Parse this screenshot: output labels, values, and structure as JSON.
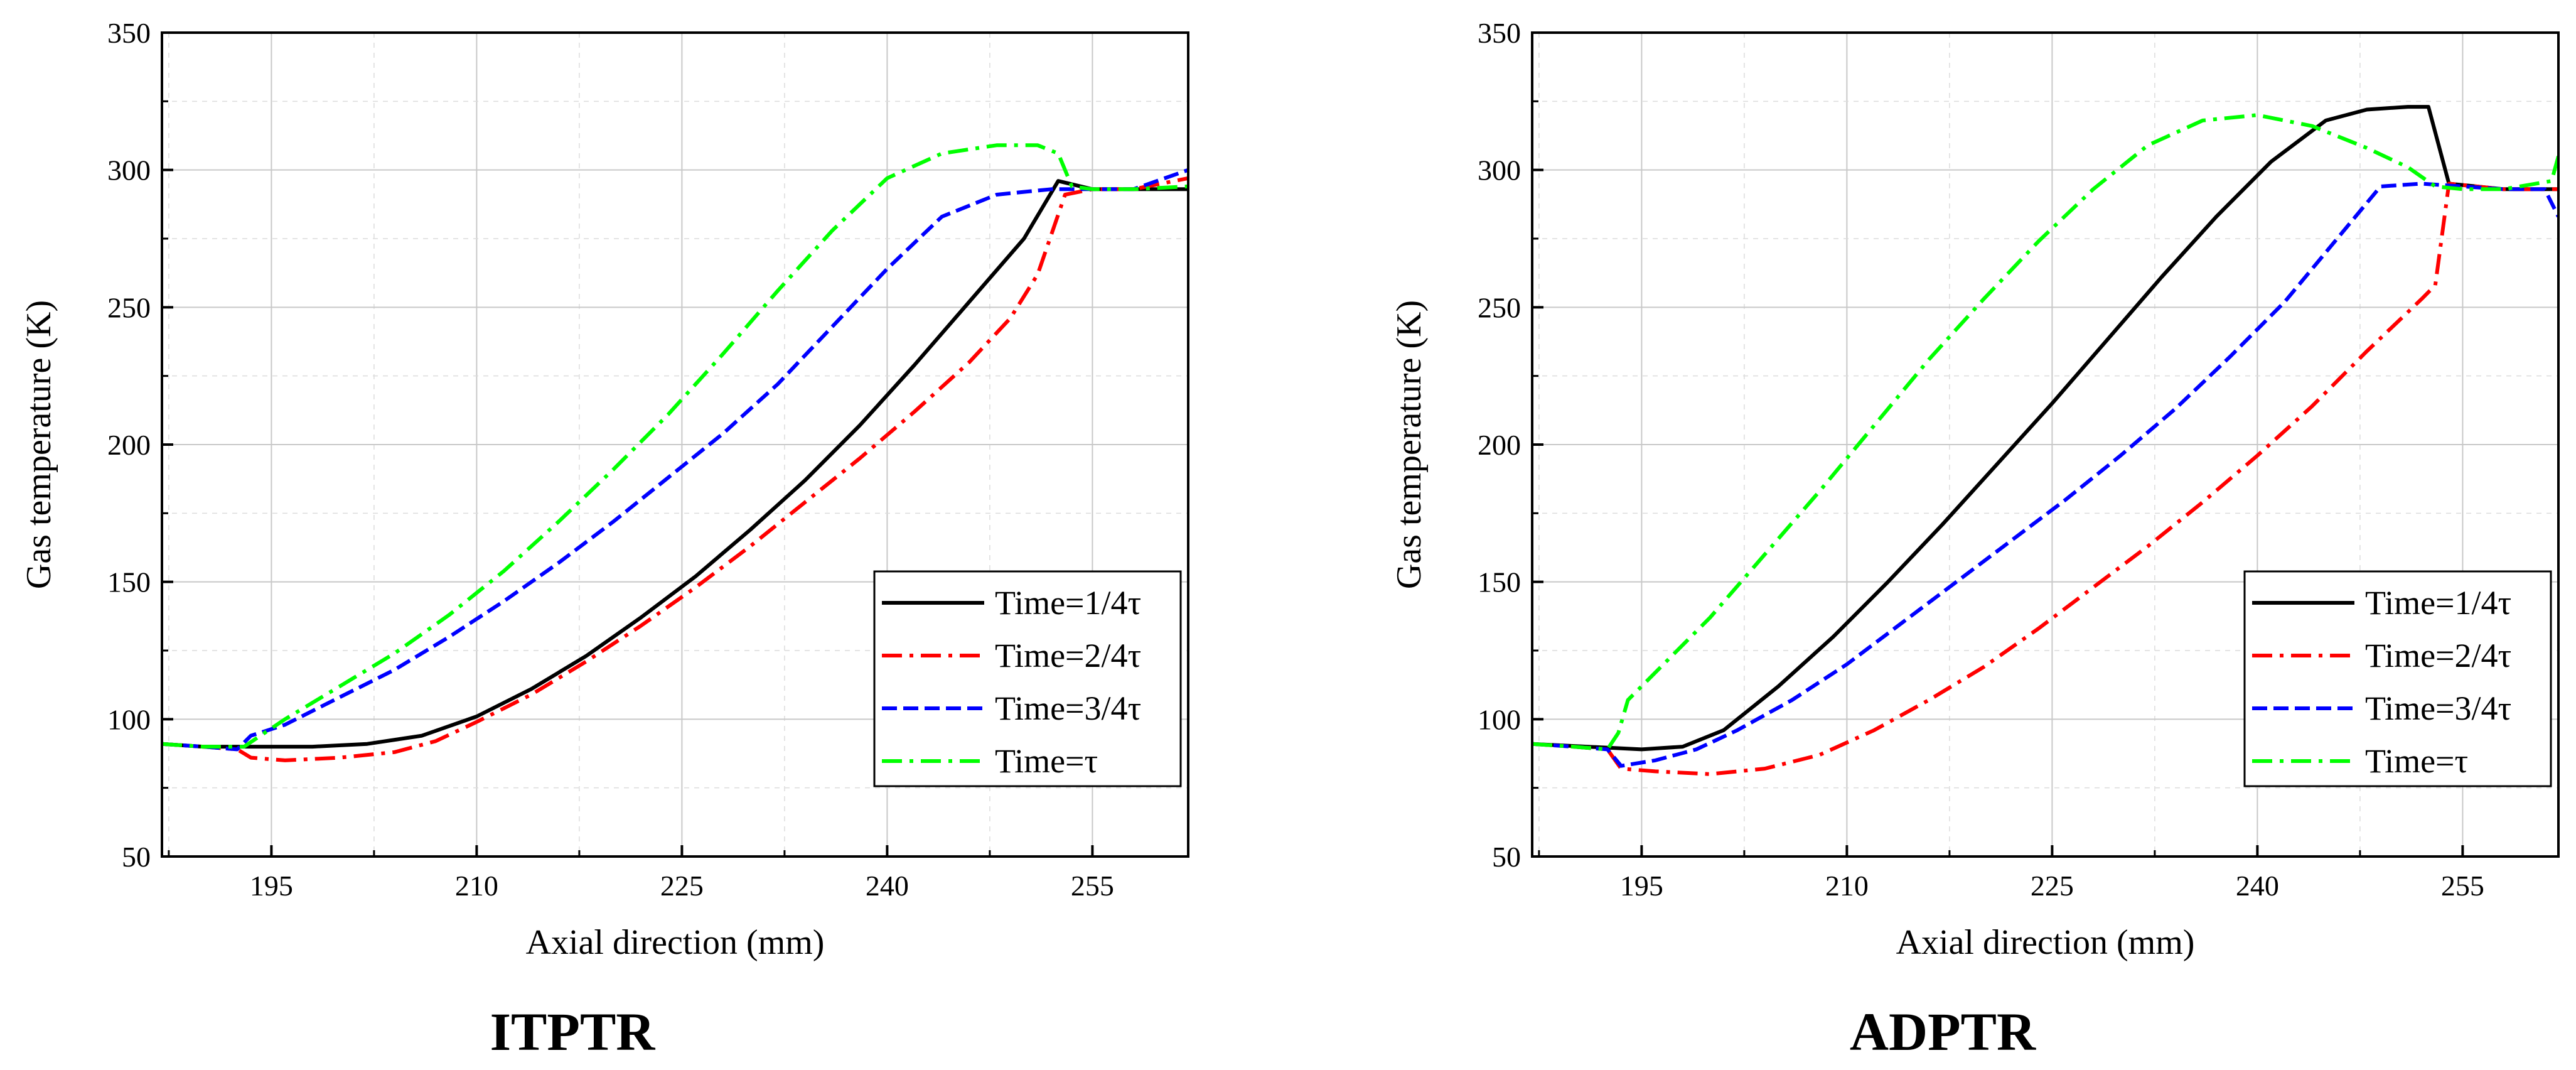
{
  "chart_data": [
    {
      "type": "line",
      "caption": "ITPTR",
      "xlabel": "Axial direction (mm)",
      "ylabel": "Gas temperature (K)",
      "xlim": [
        187,
        262
      ],
      "ylim": [
        50,
        350
      ],
      "xticks": [
        195,
        210,
        225,
        240,
        255
      ],
      "yticks": [
        50,
        100,
        150,
        200,
        250,
        300,
        350
      ],
      "grid": true,
      "legend_position": "bottom-right",
      "series": [
        {
          "name": "Time=1/4τ",
          "color": "#000000",
          "style": "solid",
          "x": [
            187,
            190,
            194,
            198,
            202,
            206,
            210,
            214,
            218,
            222,
            226,
            230,
            234,
            238,
            242,
            246,
            250,
            252.5,
            255,
            258,
            262
          ],
          "y": [
            91,
            90,
            90,
            90,
            91,
            94,
            101,
            111,
            123,
            137,
            152,
            169,
            187,
            207,
            229,
            252,
            275,
            296,
            293,
            293,
            293
          ]
        },
        {
          "name": "Time=2/4τ",
          "color": "#ff0000",
          "style": "dashdot",
          "x": [
            187,
            190,
            192.5,
            193.5,
            196,
            200,
            204,
            207,
            210,
            214,
            218,
            222,
            226,
            230,
            234,
            238,
            242,
            246,
            249,
            251,
            253,
            255,
            258,
            262
          ],
          "y": [
            91,
            90,
            89,
            86,
            85,
            86,
            88,
            92,
            99,
            109,
            121,
            134,
            148,
            163,
            179,
            195,
            212,
            230,
            246,
            262,
            291,
            293,
            293,
            297
          ]
        },
        {
          "name": "Time=3/4τ",
          "color": "#0000ff",
          "style": "dash",
          "x": [
            187,
            190,
            192.5,
            193.5,
            196,
            200,
            204,
            208,
            212,
            216,
            220,
            224,
            228,
            232,
            236,
            240,
            244,
            248,
            252,
            255,
            258,
            262
          ],
          "y": [
            91,
            90,
            89,
            94,
            98,
            108,
            118,
            130,
            143,
            157,
            172,
            188,
            204,
            222,
            243,
            264,
            283,
            291,
            293,
            293,
            293,
            300
          ]
        },
        {
          "name": "Time=τ",
          "color": "#00ff00",
          "style": "dashdot",
          "x": [
            187,
            190,
            193,
            196,
            200,
            204,
            208,
            212,
            216,
            220,
            224,
            228,
            232,
            236,
            240,
            244,
            248,
            251,
            252.5,
            253.5,
            255,
            258,
            262
          ],
          "y": [
            91,
            90,
            90,
            100,
            112,
            124,
            138,
            154,
            172,
            191,
            211,
            233,
            256,
            278,
            297,
            306,
            309,
            309,
            306,
            294,
            293,
            293,
            294
          ]
        }
      ]
    },
    {
      "type": "line",
      "caption": "ADPTR",
      "xlabel": "Axial direction (mm)",
      "ylabel": "Gas temperature (K)",
      "xlim": [
        187,
        262
      ],
      "ylim": [
        50,
        350
      ],
      "xticks": [
        195,
        210,
        225,
        240,
        255
      ],
      "yticks": [
        50,
        100,
        150,
        200,
        250,
        300,
        350
      ],
      "grid": true,
      "legend_position": "bottom-right",
      "series": [
        {
          "name": "Time=1/4τ",
          "color": "#000000",
          "style": "solid",
          "x": [
            187,
            191,
            195,
            198,
            201,
            205,
            209,
            213,
            217,
            221,
            225,
            229,
            233,
            237,
            241,
            245,
            248,
            251,
            252.5,
            254,
            258,
            262
          ],
          "y": [
            91,
            90,
            89,
            90,
            96,
            112,
            130,
            150,
            171,
            193,
            215,
            238,
            261,
            283,
            303,
            318,
            322,
            323,
            323,
            295,
            293,
            293
          ]
        },
        {
          "name": "Time=2/4τ",
          "color": "#ff0000",
          "style": "dashdot",
          "x": [
            187,
            190,
            192.5,
            193.5,
            196,
            200,
            204,
            208,
            212,
            216,
            220,
            224,
            228,
            232,
            236,
            240,
            244,
            248,
            252,
            253,
            254,
            258,
            262
          ],
          "y": [
            91,
            90,
            89,
            82,
            81,
            80,
            82,
            87,
            96,
            107,
            119,
            133,
            148,
            163,
            179,
            196,
            214,
            234,
            253,
            258,
            295,
            293,
            293
          ]
        },
        {
          "name": "Time=3/4τ",
          "color": "#0000ff",
          "style": "dash",
          "x": [
            187,
            190,
            192.5,
            193.5,
            196,
            199,
            202,
            206,
            210,
            214,
            218,
            222,
            226,
            230,
            234,
            238,
            242,
            246,
            249,
            252,
            255,
            258,
            261,
            262
          ],
          "y": [
            91,
            90,
            89,
            83,
            85,
            89,
            96,
            107,
            120,
            135,
            150,
            165,
            180,
            196,
            213,
            232,
            252,
            276,
            294,
            295,
            294,
            293,
            293,
            283
          ]
        },
        {
          "name": "Time=τ",
          "color": "#00ff00",
          "style": "dashdot",
          "x": [
            187,
            190,
            192.5,
            193.3,
            194,
            196,
            200,
            204,
            208,
            212,
            216,
            220,
            224,
            228,
            232,
            236,
            240,
            244,
            248,
            251,
            253,
            255,
            258,
            261.5,
            262
          ],
          "y": [
            91,
            90,
            89,
            95,
            107,
            117,
            137,
            160,
            183,
            207,
            231,
            253,
            274,
            293,
            309,
            318,
            320,
            316,
            308,
            301,
            294,
            293,
            293,
            296,
            305
          ]
        }
      ]
    }
  ]
}
